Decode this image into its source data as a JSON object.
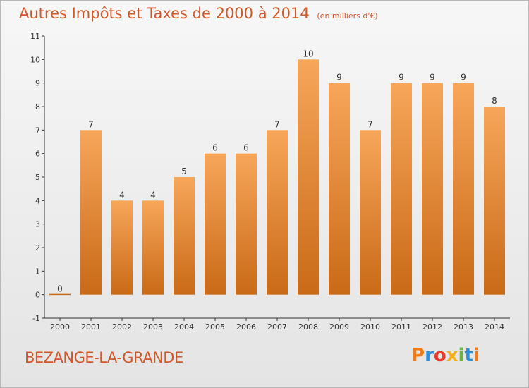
{
  "header": {
    "title": "Autres Impôts et Taxes de 2000 à 2014",
    "unit": "(en milliers d'€)"
  },
  "footer": {
    "place": "BEZANGE-LA-GRANDE",
    "logo_letters": [
      "P",
      "r",
      "o",
      "x",
      "i",
      "t",
      "i"
    ],
    "logo_colors": [
      "#f07d1a",
      "#2c8fd6",
      "#e83a2a",
      "#f2b01e",
      "#6cb33f",
      "#2c8fd6",
      "#f07d1a"
    ]
  },
  "colors": {
    "bar_top": "#f7a65a",
    "bar_bottom": "#c96a17",
    "title": "#d0582a",
    "axis": "#333333"
  },
  "chart_data": {
    "type": "bar",
    "title": "Autres Impôts et Taxes de 2000 à 2014",
    "subtitle": "(en milliers d'€)",
    "categories": [
      "2000",
      "2001",
      "2002",
      "2003",
      "2004",
      "2005",
      "2006",
      "2007",
      "2008",
      "2009",
      "2010",
      "2011",
      "2012",
      "2013",
      "2014"
    ],
    "values": [
      0,
      7,
      4,
      4,
      5,
      6,
      6,
      7,
      10,
      9,
      7,
      9,
      9,
      9,
      8
    ],
    "ylim": [
      -1,
      11
    ],
    "yticks": [
      -1,
      0,
      1,
      2,
      3,
      4,
      5,
      6,
      7,
      8,
      9,
      10,
      11
    ],
    "ytick_labels": [
      "-1",
      "0",
      "1",
      "2",
      "3",
      "4",
      "5",
      "6",
      "7",
      "8",
      "9",
      "10",
      "11"
    ],
    "xlabel": "",
    "ylabel": "",
    "grid": false,
    "legend": "none"
  }
}
